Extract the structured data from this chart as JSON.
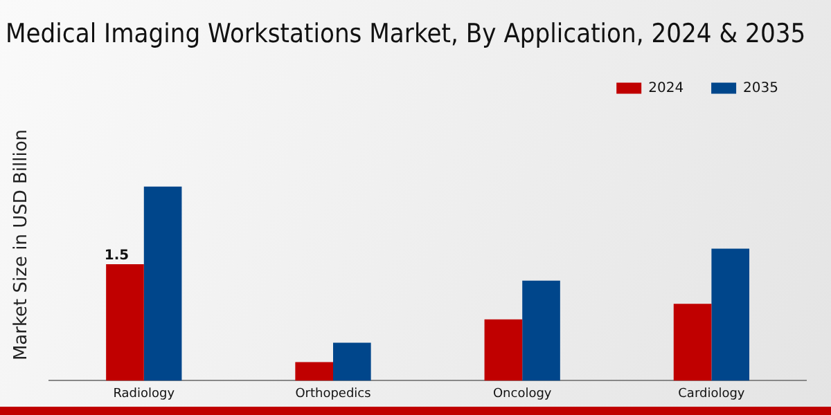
{
  "chart_data": {
    "type": "bar",
    "title": "Medical Imaging Workstations Market, By Application, 2024 & 2035",
    "ylabel": "Market Size in USD Billion",
    "categories": [
      "Radiology",
      "Orthopedics",
      "Oncology",
      "Cardiology"
    ],
    "series": [
      {
        "name": "2024",
        "color": "#c00000",
        "values": [
          1.5,
          0.24,
          0.79,
          0.99
        ],
        "value_labels": [
          "1.5",
          null,
          null,
          null
        ]
      },
      {
        "name": "2035",
        "color": "#00468b",
        "values": [
          2.5,
          0.49,
          1.29,
          1.7
        ]
      }
    ],
    "tick_labels": "x",
    "legend": "top right",
    "grid": false
  }
}
